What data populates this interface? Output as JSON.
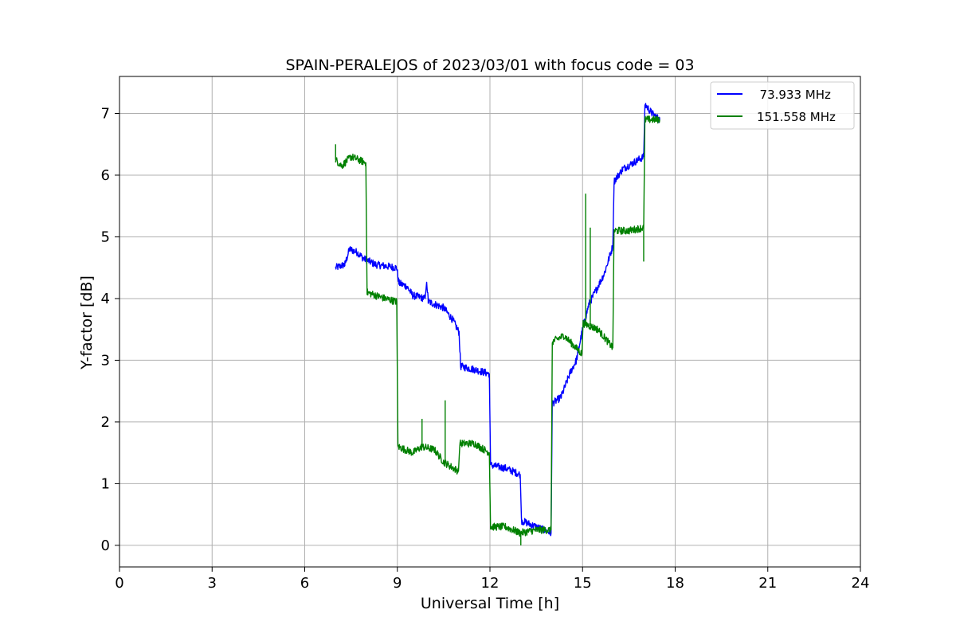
{
  "chart_data": {
    "type": "line",
    "title": "SPAIN-PERALEJOS of 2023/03/01 with focus code = 03",
    "xlabel": "Universal Time [h]",
    "ylabel": "Y-factor [dB]",
    "xlim": [
      0,
      24
    ],
    "ylim": [
      -0.35,
      7.6
    ],
    "xticks": [
      0,
      3,
      6,
      9,
      12,
      15,
      18,
      21,
      24
    ],
    "yticks": [
      0,
      1,
      2,
      3,
      4,
      5,
      6,
      7
    ],
    "grid": true,
    "legend_position": "top-right",
    "series": [
      {
        "name": "  73.933 MHz",
        "color": "#0000ff",
        "noise": 0.06,
        "points": [
          [
            7.0,
            4.5
          ],
          [
            7.3,
            4.55
          ],
          [
            7.45,
            4.8
          ],
          [
            7.7,
            4.75
          ],
          [
            7.9,
            4.65
          ],
          [
            8.3,
            4.55
          ],
          [
            8.98,
            4.5
          ],
          [
            9.05,
            4.25
          ],
          [
            9.3,
            4.2
          ],
          [
            9.5,
            4.05
          ],
          [
            9.9,
            4.0
          ],
          [
            9.95,
            4.3
          ],
          [
            10.0,
            3.95
          ],
          [
            10.5,
            3.85
          ],
          [
            10.8,
            3.65
          ],
          [
            11.0,
            3.45
          ],
          [
            11.05,
            2.9
          ],
          [
            11.5,
            2.85
          ],
          [
            11.98,
            2.78
          ],
          [
            12.02,
            1.3
          ],
          [
            12.5,
            1.25
          ],
          [
            12.98,
            1.15
          ],
          [
            13.02,
            0.4
          ],
          [
            13.5,
            0.3
          ],
          [
            13.98,
            0.2
          ],
          [
            14.02,
            2.3
          ],
          [
            14.3,
            2.4
          ],
          [
            14.6,
            2.8
          ],
          [
            14.8,
            3.0
          ],
          [
            15.0,
            3.5
          ],
          [
            15.2,
            3.9
          ],
          [
            15.4,
            4.1
          ],
          [
            15.7,
            4.4
          ],
          [
            15.98,
            4.85
          ],
          [
            16.02,
            5.9
          ],
          [
            16.3,
            6.1
          ],
          [
            16.98,
            6.3
          ],
          [
            17.02,
            7.15
          ],
          [
            17.25,
            7.0
          ],
          [
            17.5,
            6.9
          ]
        ]
      },
      {
        "name": "151.558 MHz",
        "color": "#008000",
        "noise": 0.06,
        "points": [
          [
            7.0,
            6.25
          ],
          [
            7.2,
            6.15
          ],
          [
            7.5,
            6.3
          ],
          [
            7.98,
            6.2
          ],
          [
            8.02,
            4.1
          ],
          [
            8.3,
            4.05
          ],
          [
            8.6,
            4.0
          ],
          [
            8.98,
            3.95
          ],
          [
            9.02,
            1.6
          ],
          [
            9.5,
            1.5
          ],
          [
            9.8,
            1.6
          ],
          [
            10.2,
            1.55
          ],
          [
            10.5,
            1.35
          ],
          [
            10.98,
            1.2
          ],
          [
            11.02,
            1.65
          ],
          [
            11.5,
            1.65
          ],
          [
            11.98,
            1.5
          ],
          [
            12.02,
            0.3
          ],
          [
            12.5,
            0.3
          ],
          [
            12.98,
            0.2
          ],
          [
            13.5,
            0.25
          ],
          [
            13.98,
            0.25
          ],
          [
            14.02,
            3.3
          ],
          [
            14.4,
            3.4
          ],
          [
            14.98,
            3.1
          ],
          [
            15.02,
            3.6
          ],
          [
            15.5,
            3.5
          ],
          [
            15.98,
            3.2
          ],
          [
            16.02,
            5.1
          ],
          [
            16.5,
            5.1
          ],
          [
            16.98,
            5.15
          ],
          [
            17.02,
            6.9
          ],
          [
            17.5,
            6.9
          ]
        ],
        "spikes": [
          [
            9.8,
            2.05
          ],
          [
            10.55,
            2.35
          ],
          [
            13.0,
            0.0
          ],
          [
            15.1,
            5.7
          ],
          [
            15.25,
            5.15
          ],
          [
            16.98,
            4.6
          ],
          [
            7.0,
            6.5
          ]
        ]
      }
    ]
  }
}
